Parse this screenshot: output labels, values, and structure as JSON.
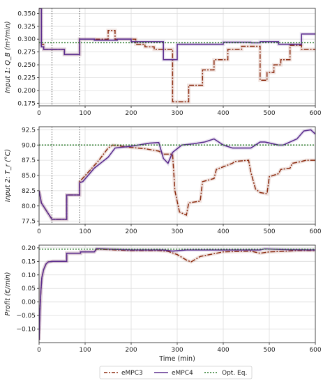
{
  "chart_data": [
    {
      "type": "line",
      "ylabel": "Input 1: Q_B (m³/min)",
      "xlim": [
        0,
        600
      ],
      "ylim": [
        0.17,
        0.36
      ],
      "xticks": [
        0,
        100,
        200,
        300,
        400,
        500,
        600
      ],
      "yticks": [
        0.175,
        0.2,
        0.225,
        0.25,
        0.275,
        0.3,
        0.325,
        0.35
      ],
      "ytick_labels": [
        "0.175",
        "0.200",
        "0.225",
        "0.250",
        "0.275",
        "0.300",
        "0.325",
        "0.350"
      ],
      "grid": true,
      "vlines": [
        28,
        88
      ],
      "reference": {
        "name": "Opt. Eq.",
        "value": 0.293
      },
      "series": [
        {
          "name": "eMPC3",
          "x": [
            0,
            5,
            5,
            10,
            10,
            55,
            55,
            88,
            88,
            150,
            150,
            165,
            165,
            210,
            210,
            230,
            230,
            250,
            250,
            290,
            290,
            325,
            325,
            355,
            355,
            380,
            380,
            410,
            410,
            440,
            440,
            480,
            480,
            495,
            495,
            510,
            510,
            525,
            525,
            545,
            545,
            570,
            570,
            600
          ],
          "y": [
            0.36,
            0.36,
            0.29,
            0.29,
            0.28,
            0.28,
            0.27,
            0.27,
            0.3,
            0.3,
            0.317,
            0.317,
            0.3,
            0.3,
            0.29,
            0.29,
            0.285,
            0.285,
            0.28,
            0.28,
            0.178,
            0.178,
            0.21,
            0.21,
            0.24,
            0.24,
            0.26,
            0.26,
            0.28,
            0.28,
            0.286,
            0.286,
            0.22,
            0.22,
            0.235,
            0.235,
            0.25,
            0.25,
            0.26,
            0.26,
            0.288,
            0.288,
            0.28,
            0.28
          ]
        },
        {
          "name": "eMPC4",
          "x": [
            0,
            5,
            5,
            10,
            10,
            55,
            55,
            88,
            88,
            120,
            120,
            170,
            170,
            200,
            200,
            270,
            270,
            300,
            300,
            400,
            400,
            460,
            460,
            480,
            480,
            520,
            520,
            570,
            570,
            600
          ],
          "y": [
            0.36,
            0.36,
            0.285,
            0.285,
            0.28,
            0.28,
            0.27,
            0.27,
            0.3,
            0.3,
            0.298,
            0.298,
            0.3,
            0.3,
            0.295,
            0.295,
            0.26,
            0.26,
            0.29,
            0.29,
            0.294,
            0.294,
            0.293,
            0.293,
            0.295,
            0.295,
            0.29,
            0.29,
            0.31,
            0.31
          ]
        }
      ]
    },
    {
      "type": "line",
      "ylabel": "Input 2: T_r (°C)",
      "xlim": [
        0,
        600
      ],
      "ylim": [
        77,
        93
      ],
      "xticks": [
        0,
        100,
        200,
        300,
        400,
        500,
        600
      ],
      "yticks": [
        77.5,
        80.0,
        82.5,
        85.0,
        87.5,
        90.0,
        92.5
      ],
      "ytick_labels": [
        "77.5",
        "80.0",
        "82.5",
        "85.0",
        "87.5",
        "90.0",
        "92.5"
      ],
      "grid": true,
      "vlines": [
        28,
        88
      ],
      "reference": {
        "name": "Opt. Eq.",
        "value": 90.0
      },
      "series": [
        {
          "name": "eMPC3",
          "x": [
            0,
            5,
            28,
            60,
            60,
            88,
            88,
            110,
            130,
            150,
            160,
            200,
            230,
            260,
            270,
            290,
            295,
            305,
            320,
            325,
            350,
            355,
            380,
            385,
            420,
            425,
            455,
            460,
            470,
            480,
            495,
            500,
            520,
            525,
            545,
            550,
            570,
            580,
            600
          ],
          "y": [
            82.5,
            80.5,
            77.8,
            77.8,
            81.8,
            81.8,
            84.0,
            85.8,
            87.5,
            89.5,
            90.0,
            89.6,
            89.4,
            89.0,
            88.5,
            88.5,
            82.5,
            79.0,
            78.5,
            80.5,
            80.8,
            84.0,
            84.5,
            86.0,
            87.0,
            87.3,
            87.5,
            85.5,
            82.8,
            82.2,
            82.0,
            84.8,
            85.3,
            86.0,
            86.2,
            87.0,
            87.3,
            87.5,
            87.5
          ]
        },
        {
          "name": "eMPC4",
          "x": [
            0,
            5,
            28,
            60,
            60,
            88,
            88,
            95,
            120,
            130,
            150,
            165,
            200,
            240,
            260,
            270,
            280,
            290,
            310,
            335,
            360,
            380,
            400,
            420,
            460,
            480,
            490,
            520,
            530,
            560,
            575,
            590,
            600
          ],
          "y": [
            82.5,
            80.5,
            77.8,
            77.8,
            81.8,
            81.8,
            83.8,
            84.0,
            86.2,
            86.8,
            88.0,
            89.5,
            89.8,
            90.3,
            90.4,
            87.8,
            87.0,
            88.8,
            90.0,
            90.2,
            90.5,
            91.0,
            90.0,
            89.5,
            89.5,
            90.5,
            90.5,
            90.0,
            90.0,
            91.0,
            92.3,
            92.5,
            91.8
          ]
        }
      ]
    },
    {
      "type": "line",
      "ylabel": "Profit (€/min)",
      "xlabel": "Time (min)",
      "xlim": [
        0,
        600
      ],
      "ylim": [
        -0.15,
        0.21
      ],
      "xticks": [
        0,
        100,
        200,
        300,
        400,
        500,
        600
      ],
      "yticks": [
        -0.1,
        -0.05,
        0.0,
        0.05,
        0.1,
        0.15,
        0.2
      ],
      "ytick_labels": [
        "−0.10",
        "−0.05",
        "0.00",
        "0.05",
        "0.10",
        "0.15",
        "0.20"
      ],
      "grid": true,
      "reference": {
        "name": "Opt. Eq.",
        "value": 0.195
      },
      "series": [
        {
          "name": "eMPC3",
          "x": [
            0,
            2,
            4,
            6,
            10,
            15,
            20,
            30,
            60,
            60,
            90,
            90,
            120,
            125,
            200,
            260,
            280,
            300,
            320,
            330,
            350,
            400,
            460,
            480,
            500,
            540,
            560,
            600
          ],
          "y": [
            -0.14,
            -0.03,
            0.04,
            0.09,
            0.12,
            0.14,
            0.148,
            0.15,
            0.15,
            0.18,
            0.18,
            0.185,
            0.185,
            0.195,
            0.19,
            0.19,
            0.187,
            0.175,
            0.155,
            0.148,
            0.168,
            0.185,
            0.188,
            0.18,
            0.185,
            0.188,
            0.19,
            0.19
          ]
        },
        {
          "name": "eMPC4",
          "x": [
            0,
            2,
            4,
            6,
            10,
            15,
            20,
            30,
            60,
            60,
            90,
            90,
            120,
            125,
            200,
            270,
            290,
            320,
            480,
            490,
            540,
            600
          ],
          "y": [
            -0.14,
            -0.03,
            0.04,
            0.09,
            0.12,
            0.14,
            0.148,
            0.15,
            0.15,
            0.18,
            0.18,
            0.185,
            0.185,
            0.197,
            0.192,
            0.192,
            0.188,
            0.192,
            0.192,
            0.196,
            0.193,
            0.192
          ]
        }
      ]
    }
  ],
  "legend": [
    {
      "label": "eMPC3",
      "color": "#8b2a0e",
      "style": "dashdot"
    },
    {
      "label": "eMPC4",
      "color": "#5b2d8e",
      "style": "solid"
    },
    {
      "label": "Opt. Eq.",
      "color": "#2a7a2a",
      "style": "dotted"
    }
  ],
  "colors": {
    "emPC3": "#8b2a0e",
    "emPC4": "#5b2d8e",
    "opt": "#2a7a2a",
    "vline": "#444444"
  }
}
